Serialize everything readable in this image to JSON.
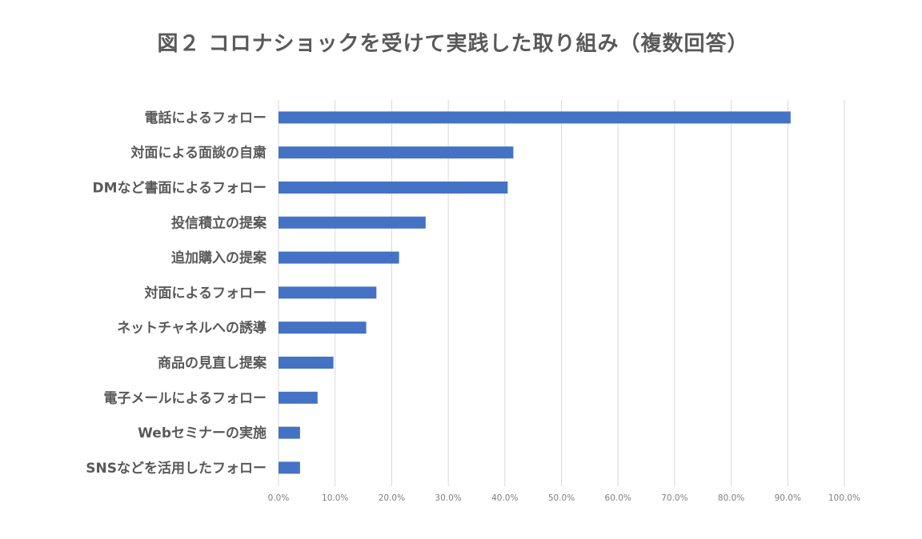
{
  "chart_data": {
    "type": "bar",
    "orientation": "horizontal",
    "title": "図２ コロナショックを受けて実践した取り組み（複数回答）",
    "categories": [
      "電話によるフォロー",
      "対面による面談の自粛",
      "DMなど書面によるフォロー",
      "投信積立の提案",
      "追加購入の提案",
      "対面によるフォロー",
      "ネットチャネルへの誘導",
      "商品の見直し提案",
      "電子メールによるフォロー",
      "Webセミナーの実施",
      "SNSなどを活用したフォロー"
    ],
    "values": [
      90.5,
      41.5,
      40.5,
      26.0,
      21.3,
      17.3,
      15.5,
      9.7,
      6.9,
      3.8,
      3.8
    ],
    "xlim": [
      0,
      100
    ],
    "tick_labels": [
      "0.0%",
      "10.0%",
      "20.0%",
      "30.0%",
      "40.0%",
      "50.0%",
      "60.0%",
      "70.0%",
      "80.0%",
      "90.0%",
      "100.0%"
    ],
    "grid": true,
    "legend": "none",
    "bar_color": "#4472c4"
  }
}
